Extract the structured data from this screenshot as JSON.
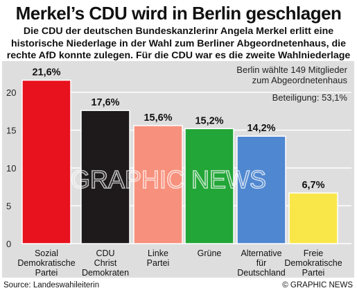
{
  "header": {
    "title": "Merkel’s CDU wird in Berlin geschlagen",
    "subtitle_lines": [
      "Die CDU der deutschen Bundeskanzlerinr Angela Merkel erlitt eine",
      "historische Niederlage in der Wahl zum Berliner Abgeordnetenhaus, die",
      "rechte AfD konnte zulegen. Für die CDU war es die zweite Wahlniederlage"
    ]
  },
  "chart_data": {
    "type": "bar",
    "categories": [
      [
        "Sozial",
        "Demokratische",
        "Partei"
      ],
      [
        "CDU",
        "Christ",
        "Demokraten"
      ],
      [
        "Linke",
        "Partei"
      ],
      [
        "Grüne"
      ],
      [
        "Alternative",
        "für",
        "Deutschland"
      ],
      [
        "Freie",
        "Demokratische",
        "Partei"
      ]
    ],
    "values": [
      21.6,
      17.6,
      15.6,
      15.2,
      14.2,
      6.7
    ],
    "value_labels": [
      "21,6%",
      "17,6%",
      "15,6%",
      "15,2%",
      "14,2%",
      "6,7%"
    ],
    "colors": [
      "#e8111e",
      "#1e1a1b",
      "#f7907c",
      "#21a637",
      "#4f87d0",
      "#f9e74a"
    ],
    "ylim": [
      0,
      22
    ],
    "yticks": [
      0,
      5,
      10,
      15,
      20
    ],
    "ytick_labels": [
      "0",
      "5",
      "10",
      "15",
      "20"
    ],
    "grid": true,
    "annotations": [
      "Berlin wählte 149 Mitglieder",
      "zum Abgeordnetenhaus",
      "Beteiligung: 53,1%"
    ]
  },
  "watermark": "GRAPHIC NEWS",
  "footer": {
    "source": "Source: Landeswahileiterin",
    "credit": "© GRAPHIC NEWS"
  }
}
